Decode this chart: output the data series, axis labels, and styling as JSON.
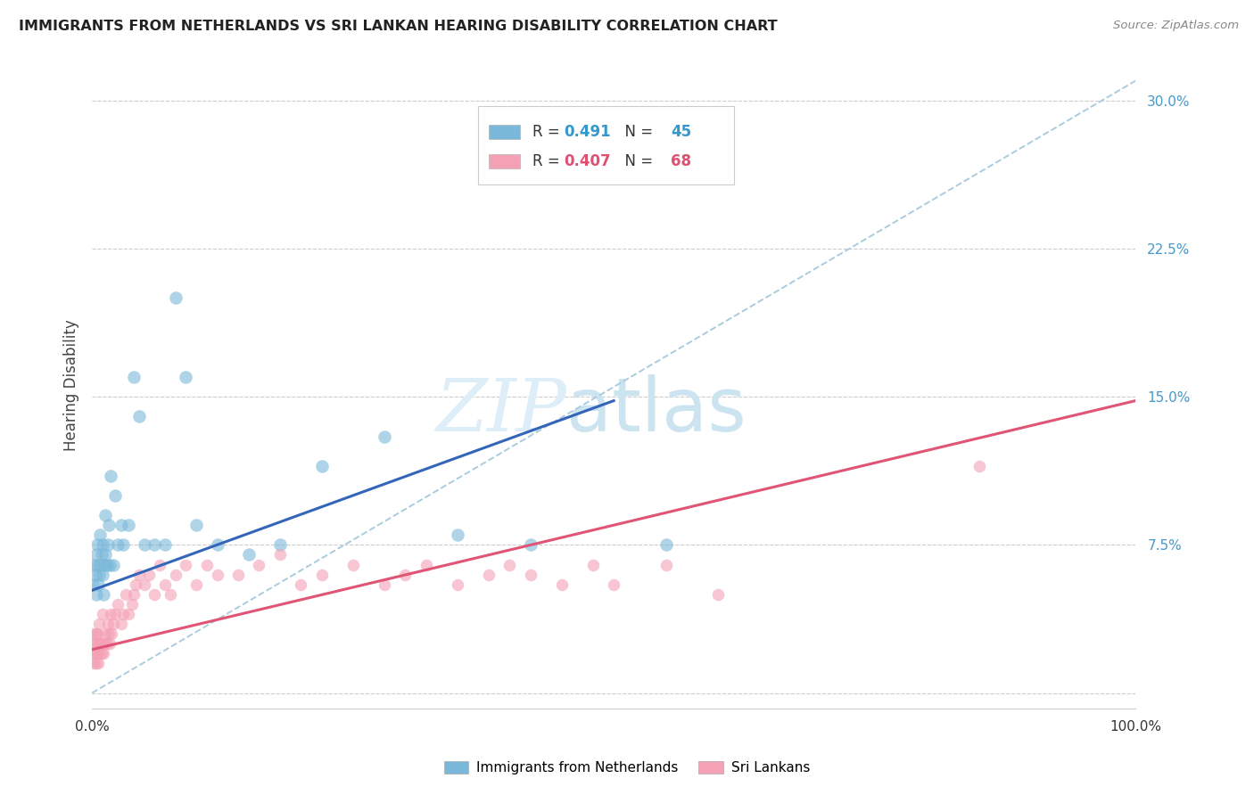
{
  "title": "IMMIGRANTS FROM NETHERLANDS VS SRI LANKAN HEARING DISABILITY CORRELATION CHART",
  "source": "Source: ZipAtlas.com",
  "ylabel": "Hearing Disability",
  "ytick_values": [
    0.0,
    0.075,
    0.15,
    0.225,
    0.3
  ],
  "ytick_labels": [
    "",
    "7.5%",
    "15.0%",
    "22.5%",
    "30.0%"
  ],
  "xlim": [
    0.0,
    1.0
  ],
  "ylim": [
    -0.008,
    0.32
  ],
  "legend1_R": "0.491",
  "legend1_N": "45",
  "legend2_R": "0.407",
  "legend2_N": "68",
  "blue_color": "#7ab8d9",
  "pink_color": "#f4a0b5",
  "blue_line_color": "#3366bb",
  "pink_line_color": "#e05575",
  "dashed_line_color": "#aaccdd",
  "blue_scatter_x": [
    0.001,
    0.002,
    0.003,
    0.004,
    0.004,
    0.005,
    0.005,
    0.006,
    0.007,
    0.008,
    0.008,
    0.009,
    0.01,
    0.01,
    0.011,
    0.012,
    0.013,
    0.013,
    0.014,
    0.015,
    0.016,
    0.017,
    0.018,
    0.02,
    0.022,
    0.025,
    0.028,
    0.03,
    0.035,
    0.04,
    0.045,
    0.05,
    0.06,
    0.07,
    0.08,
    0.09,
    0.1,
    0.12,
    0.15,
    0.18,
    0.22,
    0.28,
    0.35,
    0.42,
    0.55
  ],
  "blue_scatter_y": [
    0.055,
    0.065,
    0.06,
    0.07,
    0.05,
    0.065,
    0.075,
    0.055,
    0.06,
    0.065,
    0.08,
    0.07,
    0.06,
    0.075,
    0.05,
    0.065,
    0.07,
    0.09,
    0.065,
    0.075,
    0.085,
    0.065,
    0.11,
    0.065,
    0.1,
    0.075,
    0.085,
    0.075,
    0.085,
    0.16,
    0.14,
    0.075,
    0.075,
    0.075,
    0.2,
    0.16,
    0.085,
    0.075,
    0.07,
    0.075,
    0.115,
    0.13,
    0.08,
    0.075,
    0.075
  ],
  "pink_scatter_x": [
    0.001,
    0.001,
    0.002,
    0.002,
    0.003,
    0.003,
    0.004,
    0.004,
    0.005,
    0.005,
    0.006,
    0.006,
    0.007,
    0.007,
    0.008,
    0.009,
    0.01,
    0.01,
    0.011,
    0.012,
    0.013,
    0.014,
    0.015,
    0.016,
    0.017,
    0.018,
    0.019,
    0.02,
    0.022,
    0.025,
    0.028,
    0.03,
    0.032,
    0.035,
    0.038,
    0.04,
    0.042,
    0.045,
    0.05,
    0.055,
    0.06,
    0.065,
    0.07,
    0.075,
    0.08,
    0.09,
    0.1,
    0.11,
    0.12,
    0.14,
    0.16,
    0.18,
    0.2,
    0.22,
    0.25,
    0.28,
    0.3,
    0.32,
    0.35,
    0.38,
    0.4,
    0.42,
    0.45,
    0.48,
    0.5,
    0.55,
    0.6,
    0.85
  ],
  "pink_scatter_y": [
    0.02,
    0.03,
    0.015,
    0.025,
    0.02,
    0.025,
    0.015,
    0.03,
    0.02,
    0.03,
    0.015,
    0.025,
    0.02,
    0.035,
    0.025,
    0.02,
    0.025,
    0.04,
    0.02,
    0.025,
    0.03,
    0.025,
    0.035,
    0.03,
    0.025,
    0.04,
    0.03,
    0.035,
    0.04,
    0.045,
    0.035,
    0.04,
    0.05,
    0.04,
    0.045,
    0.05,
    0.055,
    0.06,
    0.055,
    0.06,
    0.05,
    0.065,
    0.055,
    0.05,
    0.06,
    0.065,
    0.055,
    0.065,
    0.06,
    0.06,
    0.065,
    0.07,
    0.055,
    0.06,
    0.065,
    0.055,
    0.06,
    0.065,
    0.055,
    0.06,
    0.065,
    0.06,
    0.055,
    0.065,
    0.055,
    0.065,
    0.05,
    0.115
  ],
  "blue_line_x": [
    0.0,
    0.5
  ],
  "blue_line_y": [
    0.052,
    0.148
  ],
  "pink_line_x": [
    0.0,
    1.0
  ],
  "pink_line_y": [
    0.022,
    0.148
  ],
  "dashed_line_x": [
    0.0,
    1.0
  ],
  "dashed_line_y": [
    0.0,
    0.31
  ]
}
